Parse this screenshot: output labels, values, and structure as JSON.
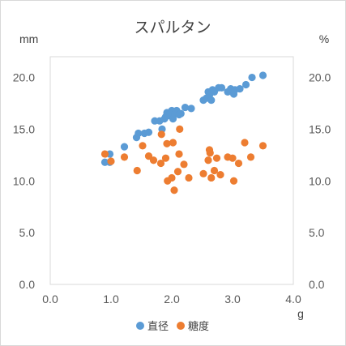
{
  "chart_data": {
    "type": "scatter",
    "title": "スパルタン",
    "x_unit": "g",
    "y_left_unit": "mm",
    "y_right_unit": "%",
    "xlim": [
      0,
      4
    ],
    "ylim": [
      0,
      22
    ],
    "x_ticks": [
      "0.0",
      "1.0",
      "2.0",
      "3.0",
      "4.0"
    ],
    "y_left_ticks": [
      "0.0",
      "5.0",
      "10.0",
      "15.0",
      "20.0"
    ],
    "y_right_ticks": [
      "0.0",
      "5.0",
      "10.0",
      "15.0",
      "20.0"
    ],
    "grid": false,
    "legend_position": "bottom",
    "series": [
      {
        "name": "直径",
        "color": "#5b9bd5",
        "axis": "left",
        "points": [
          [
            0.9,
            11.8
          ],
          [
            0.98,
            11.8
          ],
          [
            0.98,
            12.6
          ],
          [
            1.22,
            13.3
          ],
          [
            1.42,
            14.2
          ],
          [
            1.45,
            14.6
          ],
          [
            1.55,
            14.6
          ],
          [
            1.62,
            14.7
          ],
          [
            1.72,
            15.8
          ],
          [
            1.8,
            15.8
          ],
          [
            1.84,
            15.0
          ],
          [
            1.88,
            16.0
          ],
          [
            1.9,
            16.2
          ],
          [
            1.92,
            16.6
          ],
          [
            1.94,
            16.3
          ],
          [
            1.97,
            16.5
          ],
          [
            2.0,
            16.8
          ],
          [
            2.02,
            16.0
          ],
          [
            2.05,
            16.5
          ],
          [
            2.08,
            16.8
          ],
          [
            2.12,
            16.4
          ],
          [
            2.15,
            16.5
          ],
          [
            2.22,
            17.1
          ],
          [
            2.32,
            17.0
          ],
          [
            2.52,
            17.8
          ],
          [
            2.57,
            18.0
          ],
          [
            2.6,
            18.6
          ],
          [
            2.62,
            18.3
          ],
          [
            2.65,
            17.8
          ],
          [
            2.67,
            18.8
          ],
          [
            2.7,
            18.6
          ],
          [
            2.77,
            19.0
          ],
          [
            2.82,
            19.0
          ],
          [
            2.92,
            18.6
          ],
          [
            2.97,
            18.9
          ],
          [
            3.02,
            18.4
          ],
          [
            3.04,
            18.8
          ],
          [
            3.12,
            18.9
          ],
          [
            3.22,
            19.3
          ],
          [
            3.32,
            20.0
          ],
          [
            3.5,
            20.2
          ]
        ]
      },
      {
        "name": "糖度",
        "color": "#ed7d31",
        "axis": "right",
        "points": [
          [
            0.9,
            12.6
          ],
          [
            1.0,
            11.9
          ],
          [
            1.22,
            12.3
          ],
          [
            1.43,
            11.0
          ],
          [
            1.52,
            13.4
          ],
          [
            1.62,
            12.4
          ],
          [
            1.7,
            12.0
          ],
          [
            1.82,
            11.7
          ],
          [
            1.83,
            14.5
          ],
          [
            1.9,
            12.2
          ],
          [
            1.92,
            13.6
          ],
          [
            1.93,
            10.0
          ],
          [
            2.0,
            10.3
          ],
          [
            2.02,
            13.7
          ],
          [
            2.04,
            9.1
          ],
          [
            2.1,
            10.9
          ],
          [
            2.12,
            12.6
          ],
          [
            2.13,
            15.0
          ],
          [
            2.2,
            11.6
          ],
          [
            2.28,
            10.3
          ],
          [
            2.52,
            10.7
          ],
          [
            2.6,
            12.0
          ],
          [
            2.62,
            13.0
          ],
          [
            2.63,
            12.7
          ],
          [
            2.65,
            10.3
          ],
          [
            2.7,
            11.0
          ],
          [
            2.74,
            12.2
          ],
          [
            2.8,
            10.6
          ],
          [
            2.92,
            12.3
          ],
          [
            3.0,
            12.2
          ],
          [
            3.02,
            10.0
          ],
          [
            3.1,
            11.7
          ],
          [
            3.2,
            13.7
          ],
          [
            3.3,
            12.3
          ],
          [
            3.5,
            13.4
          ]
        ]
      }
    ]
  }
}
